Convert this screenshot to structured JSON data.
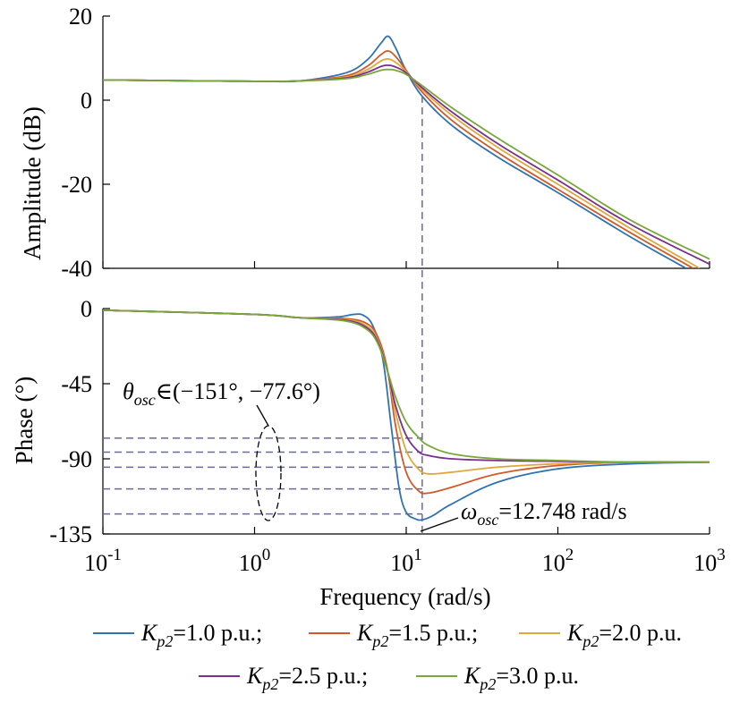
{
  "chart_data": {
    "type": "line",
    "xscale": "log",
    "xlim": [
      0.1,
      1000
    ],
    "xlabel": "Frequency (rad/s)",
    "xtick_labels": [
      {
        "base": "10",
        "exp": "-1"
      },
      {
        "base": "10",
        "exp": "0"
      },
      {
        "base": "10",
        "exp": "1"
      },
      {
        "base": "10",
        "exp": "2"
      },
      {
        "base": "10",
        "exp": "3"
      }
    ],
    "legend": {
      "placement": "bottom",
      "entries": [
        {
          "name": "K_p2=1.0 p.u.;",
          "sym": "K",
          "sub": "p2",
          "rest": "=1.0 p.u.;",
          "color": "#2f73b0"
        },
        {
          "name": "K_p2=1.5 p.u.;",
          "sym": "K",
          "sub": "p2",
          "rest": "=1.5 p.u.;",
          "color": "#d05a2a"
        },
        {
          "name": "K_p2=2.0 p.u.",
          "sym": "K",
          "sub": "p2",
          "rest": "=2.0 p.u.",
          "color": "#e0a83a"
        },
        {
          "name": "K_p2=2.5 p.u.;",
          "sym": "K",
          "sub": "p2",
          "rest": "=2.5 p.u.;",
          "color": "#7b2f8e"
        },
        {
          "name": "K_p2=3.0 p.u.",
          "sym": "K",
          "sub": "p2",
          "rest": "=3.0 p.u.",
          "color": "#78a83a"
        }
      ]
    },
    "panels": [
      {
        "id": "amplitude",
        "ylabel": "Amplitude (dB)",
        "ylim": [
          -40,
          20
        ],
        "yticks": [
          -40,
          -20,
          0,
          20
        ],
        "ytick_labels": [
          "-40",
          "-20",
          "0",
          "20"
        ],
        "series": [
          {
            "name": "K_p2=1.0 p.u.",
            "color": "#2f73b0",
            "x": [
              0.1,
              1,
              2,
              4,
              5.5,
              6.8,
              7.6,
              8.5,
              10,
              12.7,
              20,
              40,
              100,
              300,
              700
            ],
            "y": [
              4.8,
              4.5,
              4.6,
              6.5,
              9.5,
              13.5,
              15.2,
              12.5,
              7.0,
              1.0,
              -6.0,
              -13.5,
              -22.0,
              -32.5,
              -40.0
            ]
          },
          {
            "name": "K_p2=1.5 p.u.",
            "color": "#d05a2a",
            "x": [
              0.1,
              1,
              2,
              4,
              5.5,
              6.8,
              7.6,
              8.5,
              10,
              12.7,
              20,
              40,
              100,
              300,
              780
            ],
            "y": [
              4.8,
              4.5,
              4.6,
              5.8,
              8.0,
              10.8,
              11.7,
              10.4,
              7.1,
              2.0,
              -4.8,
              -12.4,
              -21.2,
              -31.5,
              -40.0
            ]
          },
          {
            "name": "K_p2=2.0 p.u.",
            "color": "#e0a83a",
            "x": [
              0.1,
              1,
              2,
              4,
              5.5,
              6.8,
              7.6,
              8.5,
              10,
              12.7,
              20,
              40,
              100,
              300,
              860
            ],
            "y": [
              4.8,
              4.5,
              4.6,
              5.5,
              7.2,
              9.3,
              9.8,
              9.0,
              6.8,
              2.6,
              -3.6,
              -11.2,
              -20.0,
              -30.5,
              -40.0
            ]
          },
          {
            "name": "K_p2=2.5 p.u.",
            "color": "#7b2f8e",
            "x": [
              0.1,
              1,
              2,
              4,
              5.5,
              6.8,
              7.6,
              8.5,
              10,
              12.7,
              20,
              40,
              100,
              300,
              1000
            ],
            "y": [
              4.8,
              4.5,
              4.6,
              5.3,
              6.6,
              8.0,
              8.3,
              7.9,
              6.5,
              3.0,
              -2.8,
              -10.3,
              -19.0,
              -29.5,
              -39.0
            ]
          },
          {
            "name": "K_p2=3.0 p.u.",
            "color": "#78a83a",
            "x": [
              0.1,
              1,
              2,
              4,
              5.5,
              6.8,
              7.6,
              8.5,
              10,
              12.7,
              20,
              40,
              100,
              300,
              1000
            ],
            "y": [
              4.8,
              4.5,
              4.6,
              5.1,
              6.1,
              7.1,
              7.3,
              7.1,
              6.1,
              3.5,
              -1.8,
              -9.0,
              -17.8,
              -28.5,
              -37.8
            ]
          }
        ],
        "vline": {
          "x": 12.748
        }
      },
      {
        "id": "phase",
        "ylabel": "Phase (°)",
        "ylim": [
          -135,
          0
        ],
        "yticks": [
          -135,
          -90,
          -45,
          0
        ],
        "ytick_labels": [
          "-135",
          "-90",
          "-45",
          "0"
        ],
        "series": [
          {
            "name": "K_p2=1.0 p.u.",
            "color": "#2f73b0",
            "x": [
              0.1,
              1,
              2,
              3.5,
              4.5,
              5.2,
              6,
              7,
              8,
              9,
              10,
              11.5,
              12.748,
              15,
              20,
              40,
              100,
              300,
              1000
            ],
            "y": [
              -1,
              -3.5,
              -5.5,
              -5,
              -3.5,
              -4,
              -10,
              -30,
              -72,
              -108,
              -122,
              -126,
              -126.5,
              -124,
              -117,
              -104,
              -96,
              -93,
              -92
            ]
          },
          {
            "name": "K_p2=1.5 p.u.",
            "color": "#d05a2a",
            "x": [
              0.1,
              1,
              2,
              4,
              5.5,
              6.5,
              7.5,
              8.5,
              10,
              12,
              14,
              20,
              40,
              100,
              300,
              1000
            ],
            "y": [
              -1,
              -3.5,
              -5.5,
              -6,
              -9,
              -17,
              -36,
              -70,
              -98,
              -109,
              -110.5,
              -107,
              -99,
              -94,
              -92,
              -92
            ]
          },
          {
            "name": "K_p2=2.0 p.u.",
            "color": "#e0a83a",
            "x": [
              0.1,
              1,
              2,
              4,
              5.5,
              6.5,
              7.5,
              8.5,
              10,
              12,
              14,
              20,
              40,
              100,
              300,
              1000
            ],
            "y": [
              -1,
              -3.5,
              -5.5,
              -6.5,
              -10.5,
              -19,
              -37,
              -62,
              -85,
              -96,
              -99,
              -98,
              -95,
              -93,
              -92,
              -92
            ]
          },
          {
            "name": "K_p2=2.5 p.u.",
            "color": "#7b2f8e",
            "x": [
              0.1,
              1,
              2,
              4,
              5.5,
              6.5,
              7.5,
              8.5,
              10,
              12,
              14,
              20,
              40,
              100,
              300,
              1000
            ],
            "y": [
              -1,
              -3.5,
              -5.5,
              -7,
              -11.5,
              -20,
              -37,
              -58,
              -76,
              -85.5,
              -88,
              -90,
              -91,
              -91.5,
              -92,
              -92
            ]
          },
          {
            "name": "K_p2=3.0 p.u.",
            "color": "#78a83a",
            "x": [
              0.1,
              1,
              2,
              4,
              5.5,
              6.5,
              7.5,
              8.5,
              10,
              12,
              14,
              20,
              40,
              100,
              300,
              1000
            ],
            "y": [
              -1,
              -3.5,
              -5.5,
              -7.5,
              -12.5,
              -21,
              -37,
              -53,
              -68,
              -77,
              -82,
              -87,
              -90,
              -91,
              -92,
              -92
            ]
          }
        ],
        "hlines": [
          -77.6,
          -86,
          -95,
          -108,
          -123
        ]
      }
    ],
    "annotations": [
      {
        "id": "theta",
        "sym": "θ",
        "sub": "osc",
        "rest": "∈(−151°, −77.6°)"
      },
      {
        "id": "omega",
        "sym": "ω",
        "sub": "osc",
        "rest": "=12.748 rad/s"
      }
    ]
  }
}
